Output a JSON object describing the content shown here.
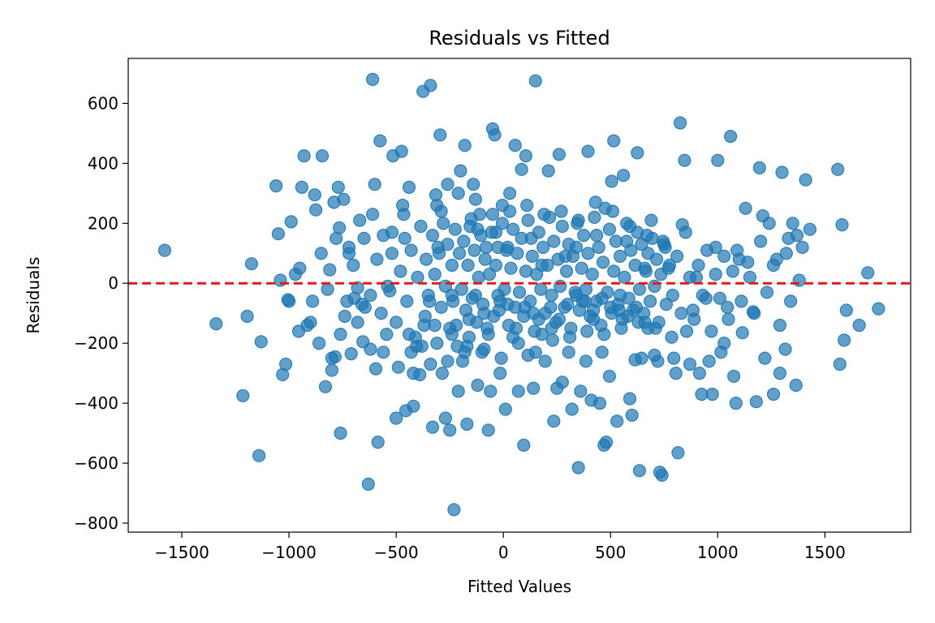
{
  "chart_data": {
    "type": "scatter",
    "title": "Residuals vs Fitted",
    "xlabel": "Fitted Values",
    "ylabel": "Residuals",
    "xlim": [
      -1750,
      1900
    ],
    "ylim": [
      -830,
      750
    ],
    "xticks": [
      -1500,
      -1000,
      -500,
      0,
      500,
      1000,
      1500
    ],
    "xtick_labels": [
      "−1500",
      "−1000",
      "−500",
      "0",
      "500",
      "1000",
      "1500"
    ],
    "yticks": [
      -800,
      -600,
      -400,
      -200,
      0,
      200,
      400,
      600
    ],
    "ytick_labels": [
      "−800",
      "−600",
      "−400",
      "−200",
      "0",
      "200",
      "400",
      "600"
    ],
    "grid": false,
    "point_color": "#1f77b4",
    "reference_line": {
      "y": 0,
      "color": "#e31a1c",
      "style": "dashed"
    },
    "points": [
      [
        -1580,
        110
      ],
      [
        -1340,
        -135
      ],
      [
        -1215,
        -375
      ],
      [
        -1195,
        -110
      ],
      [
        -1175,
        65
      ],
      [
        -1140,
        -575
      ],
      [
        -1130,
        -195
      ],
      [
        -1060,
        325
      ],
      [
        -1050,
        165
      ],
      [
        -1040,
        10
      ],
      [
        -1030,
        -305
      ],
      [
        -1015,
        -270
      ],
      [
        -1005,
        -55
      ],
      [
        -990,
        205
      ],
      [
        -970,
        30
      ],
      [
        -955,
        -160
      ],
      [
        -940,
        320
      ],
      [
        -930,
        425
      ],
      [
        -915,
        -140
      ],
      [
        -890,
        -60
      ],
      [
        -880,
        295
      ],
      [
        -875,
        245
      ],
      [
        -860,
        -200
      ],
      [
        -845,
        425
      ],
      [
        -830,
        -345
      ],
      [
        -810,
        45
      ],
      [
        -800,
        -290
      ],
      [
        -790,
        270
      ],
      [
        -785,
        -245
      ],
      [
        -770,
        320
      ],
      [
        -765,
        185
      ],
      [
        -760,
        -500
      ],
      [
        -745,
        280
      ],
      [
        -730,
        -60
      ],
      [
        -720,
        100
      ],
      [
        -710,
        -235
      ],
      [
        -695,
        -50
      ],
      [
        -680,
        -130
      ],
      [
        -670,
        210
      ],
      [
        -655,
        -195
      ],
      [
        -645,
        -80
      ],
      [
        -630,
        -670
      ],
      [
        -620,
        -220
      ],
      [
        -610,
        680
      ],
      [
        -600,
        330
      ],
      [
        -595,
        -285
      ],
      [
        -585,
        -530
      ],
      [
        -575,
        475
      ],
      [
        -560,
        160
      ],
      [
        -545,
        -170
      ],
      [
        -530,
        -25
      ],
      [
        -515,
        425
      ],
      [
        -500,
        -450
      ],
      [
        -490,
        -280
      ],
      [
        -475,
        440
      ],
      [
        -465,
        230
      ],
      [
        -455,
        -425
      ],
      [
        -440,
        320
      ],
      [
        -430,
        -230
      ],
      [
        -420,
        -410
      ],
      [
        -405,
        -210
      ],
      [
        -390,
        -305
      ],
      [
        -375,
        640
      ],
      [
        -365,
        -110
      ],
      [
        -350,
        -40
      ],
      [
        -340,
        660
      ],
      [
        -330,
        -480
      ],
      [
        -320,
        -140
      ],
      [
        -315,
        295
      ],
      [
        -305,
        120
      ],
      [
        -295,
        495
      ],
      [
        -285,
        -300
      ],
      [
        -270,
        -450
      ],
      [
        -260,
        330
      ],
      [
        -250,
        -490
      ],
      [
        -240,
        -40
      ],
      [
        -230,
        -755
      ],
      [
        -220,
        -140
      ],
      [
        -210,
        -360
      ],
      [
        -200,
        375
      ],
      [
        -190,
        -260
      ],
      [
        -180,
        460
      ],
      [
        -170,
        -470
      ],
      [
        -160,
        -120
      ],
      [
        -150,
        215
      ],
      [
        -140,
        330
      ],
      [
        -130,
        -40
      ],
      [
        -120,
        -340
      ],
      [
        -110,
        230
      ],
      [
        -100,
        -230
      ],
      [
        -90,
        -100
      ],
      [
        -80,
        120
      ],
      [
        -70,
        -490
      ],
      [
        -60,
        -360
      ],
      [
        -50,
        515
      ],
      [
        -40,
        495
      ],
      [
        -35,
        170
      ],
      [
        -25,
        -40
      ],
      [
        -15,
        -300
      ],
      [
        -5,
        260
      ],
      [
        10,
        -420
      ],
      [
        20,
        120
      ],
      [
        30,
        300
      ],
      [
        45,
        -180
      ],
      [
        55,
        460
      ],
      [
        70,
        -360
      ],
      [
        85,
        380
      ],
      [
        95,
        -540
      ],
      [
        105,
        425
      ],
      [
        115,
        -240
      ],
      [
        130,
        150
      ],
      [
        140,
        -350
      ],
      [
        150,
        675
      ],
      [
        165,
        -120
      ],
      [
        180,
        60
      ],
      [
        195,
        -260
      ],
      [
        210,
        375
      ],
      [
        225,
        -150
      ],
      [
        235,
        -460
      ],
      [
        250,
        -350
      ],
      [
        260,
        430
      ],
      [
        275,
        -330
      ],
      [
        290,
        90
      ],
      [
        305,
        -230
      ],
      [
        320,
        -420
      ],
      [
        340,
        120
      ],
      [
        350,
        -615
      ],
      [
        360,
        -360
      ],
      [
        370,
        -60
      ],
      [
        385,
        -260
      ],
      [
        395,
        440
      ],
      [
        410,
        -390
      ],
      [
        420,
        -120
      ],
      [
        435,
        160
      ],
      [
        450,
        -400
      ],
      [
        460,
        -230
      ],
      [
        470,
        -540
      ],
      [
        480,
        -530
      ],
      [
        495,
        -310
      ],
      [
        505,
        340
      ],
      [
        515,
        475
      ],
      [
        530,
        -460
      ],
      [
        545,
        -40
      ],
      [
        560,
        360
      ],
      [
        575,
        140
      ],
      [
        590,
        -385
      ],
      [
        600,
        -440
      ],
      [
        615,
        -255
      ],
      [
        625,
        435
      ],
      [
        635,
        -625
      ],
      [
        645,
        -250
      ],
      [
        660,
        50
      ],
      [
        675,
        -150
      ],
      [
        690,
        210
      ],
      [
        705,
        -240
      ],
      [
        720,
        -260
      ],
      [
        730,
        -630
      ],
      [
        740,
        -640
      ],
      [
        755,
        120
      ],
      [
        770,
        50
      ],
      [
        785,
        -180
      ],
      [
        795,
        -250
      ],
      [
        805,
        -300
      ],
      [
        815,
        -565
      ],
      [
        825,
        535
      ],
      [
        835,
        195
      ],
      [
        845,
        410
      ],
      [
        855,
        -160
      ],
      [
        870,
        -270
      ],
      [
        885,
        -90
      ],
      [
        900,
        20
      ],
      [
        915,
        -300
      ],
      [
        925,
        -370
      ],
      [
        945,
        -50
      ],
      [
        960,
        -260
      ],
      [
        975,
        -370
      ],
      [
        990,
        120
      ],
      [
        1000,
        410
      ],
      [
        1015,
        -230
      ],
      [
        1030,
        -200
      ],
      [
        1045,
        -80
      ],
      [
        1060,
        490
      ],
      [
        1075,
        -310
      ],
      [
        1085,
        -400
      ],
      [
        1100,
        80
      ],
      [
        1115,
        -165
      ],
      [
        1130,
        250
      ],
      [
        1150,
        20
      ],
      [
        1165,
        -95
      ],
      [
        1180,
        -395
      ],
      [
        1195,
        385
      ],
      [
        1210,
        225
      ],
      [
        1220,
        -250
      ],
      [
        1240,
        200
      ],
      [
        1260,
        -370
      ],
      [
        1275,
        80
      ],
      [
        1290,
        -300
      ],
      [
        1300,
        370
      ],
      [
        1315,
        -220
      ],
      [
        1330,
        150
      ],
      [
        1350,
        200
      ],
      [
        1365,
        -340
      ],
      [
        1380,
        10
      ],
      [
        1395,
        120
      ],
      [
        1410,
        345
      ],
      [
        1430,
        180
      ],
      [
        1560,
        380
      ],
      [
        1570,
        -270
      ],
      [
        1580,
        195
      ],
      [
        1590,
        -190
      ],
      [
        1600,
        -90
      ],
      [
        1660,
        -140
      ],
      [
        1700,
        35
      ],
      [
        1750,
        -85
      ],
      [
        -1000,
        -60
      ],
      [
        -950,
        50
      ],
      [
        -900,
        -130
      ],
      [
        -850,
        100
      ],
      [
        -820,
        -20
      ],
      [
        -780,
        150
      ],
      [
        -740,
        -110
      ],
      [
        -700,
        60
      ],
      [
        -680,
        -15
      ],
      [
        -650,
        150
      ],
      [
        -620,
        -40
      ],
      [
        -590,
        80
      ],
      [
        -570,
        -100
      ],
      [
        -540,
        -10
      ],
      [
        -520,
        170
      ],
      [
        -500,
        -130
      ],
      [
        -480,
        40
      ],
      [
        -460,
        150
      ],
      [
        -450,
        -60
      ],
      [
        -430,
        110
      ],
      [
        -410,
        -180
      ],
      [
        -400,
        20
      ],
      [
        -385,
        190
      ],
      [
        -370,
        -140
      ],
      [
        -360,
        80
      ],
      [
        -345,
        -60
      ],
      [
        -330,
        160
      ],
      [
        -320,
        30
      ],
      [
        -310,
        -200
      ],
      [
        -300,
        100
      ],
      [
        -290,
        -80
      ],
      [
        -280,
        200
      ],
      [
        -270,
        -10
      ],
      [
        -260,
        130
      ],
      [
        -250,
        -150
      ],
      [
        -240,
        60
      ],
      [
        -235,
        -60
      ],
      [
        -225,
        180
      ],
      [
        -215,
        -210
      ],
      [
        -205,
        100
      ],
      [
        -195,
        -20
      ],
      [
        -185,
        140
      ],
      [
        -175,
        -90
      ],
      [
        -165,
        60
      ],
      [
        -160,
        -180
      ],
      [
        -155,
        190
      ],
      [
        -145,
        -50
      ],
      [
        -135,
        110
      ],
      [
        -125,
        -130
      ],
      [
        -115,
        20
      ],
      [
        -105,
        160
      ],
      [
        -95,
        -70
      ],
      [
        -85,
        80
      ],
      [
        -75,
        -150
      ],
      [
        -65,
        30
      ],
      [
        -55,
        170
      ],
      [
        -45,
        -110
      ],
      [
        -35,
        60
      ],
      [
        -25,
        120
      ],
      [
        -15,
        -60
      ],
      [
        -5,
        200
      ],
      [
        5,
        -20
      ],
      [
        15,
        110
      ],
      [
        25,
        -140
      ],
      [
        35,
        50
      ],
      [
        45,
        180
      ],
      [
        55,
        -80
      ],
      [
        65,
        100
      ],
      [
        75,
        -30
      ],
      [
        85,
        150
      ],
      [
        95,
        -110
      ],
      [
        105,
        40
      ],
      [
        115,
        210
      ],
      [
        125,
        -60
      ],
      [
        135,
        90
      ],
      [
        145,
        -160
      ],
      [
        155,
        30
      ],
      [
        165,
        170
      ],
      [
        175,
        -20
      ],
      [
        185,
        120
      ],
      [
        195,
        -100
      ],
      [
        205,
        60
      ],
      [
        215,
        220
      ],
      [
        225,
        -40
      ],
      [
        235,
        140
      ],
      [
        245,
        -130
      ],
      [
        255,
        80
      ],
      [
        265,
        -10
      ],
      [
        275,
        190
      ],
      [
        285,
        -80
      ],
      [
        295,
        40
      ],
      [
        305,
        130
      ],
      [
        315,
        -150
      ],
      [
        325,
        90
      ],
      [
        335,
        -30
      ],
      [
        345,
        200
      ],
      [
        355,
        -90
      ],
      [
        365,
        50
      ],
      [
        375,
        160
      ],
      [
        385,
        -20
      ],
      [
        395,
        100
      ],
      [
        405,
        -110
      ],
      [
        415,
        30
      ],
      [
        425,
        220
      ],
      [
        435,
        -60
      ],
      [
        445,
        120
      ],
      [
        455,
        -140
      ],
      [
        465,
        70
      ],
      [
        475,
        250
      ],
      [
        485,
        -30
      ],
      [
        495,
        180
      ],
      [
        505,
        -100
      ],
      [
        515,
        40
      ],
      [
        525,
        140
      ],
      [
        535,
        -70
      ],
      [
        545,
        90
      ],
      [
        555,
        -120
      ],
      [
        565,
        20
      ],
      [
        575,
        200
      ],
      [
        585,
        -50
      ],
      [
        595,
        110
      ],
      [
        605,
        -90
      ],
      [
        615,
        60
      ],
      [
        625,
        170
      ],
      [
        635,
        -20
      ],
      [
        645,
        130
      ],
      [
        655,
        -100
      ],
      [
        665,
        40
      ],
      [
        675,
        100
      ],
      [
        685,
        -60
      ],
      [
        695,
        150
      ],
      [
        705,
        -10
      ],
      [
        715,
        80
      ],
      [
        725,
        -130
      ],
      [
        735,
        30
      ],
      [
        745,
        140
      ],
      [
        760,
        -70
      ],
      [
        775,
        60
      ],
      [
        790,
        -40
      ],
      [
        810,
        90
      ],
      [
        830,
        -100
      ],
      [
        850,
        170
      ],
      [
        870,
        20
      ],
      [
        890,
        -120
      ],
      [
        910,
        60
      ],
      [
        930,
        -40
      ],
      [
        950,
        110
      ],
      [
        970,
        -160
      ],
      [
        990,
        30
      ],
      [
        1010,
        -50
      ],
      [
        1030,
        90
      ],
      [
        1050,
        -120
      ],
      [
        1070,
        40
      ],
      [
        1090,
        110
      ],
      [
        1110,
        -60
      ],
      [
        1140,
        70
      ],
      [
        1170,
        -100
      ],
      [
        1200,
        140
      ],
      [
        1230,
        -30
      ],
      [
        1260,
        60
      ],
      [
        1290,
        -140
      ],
      [
        1320,
        100
      ],
      [
        1340,
        -60
      ],
      [
        1370,
        160
      ],
      [
        -470,
        260
      ],
      [
        -420,
        -300
      ],
      [
        -380,
        -210
      ],
      [
        -310,
        260
      ],
      [
        -260,
        -260
      ],
      [
        -210,
        300
      ],
      [
        -170,
        -210
      ],
      [
        -130,
        280
      ],
      [
        -90,
        -220
      ],
      [
        -50,
        230
      ],
      [
        -10,
        -250
      ],
      [
        30,
        240
      ],
      [
        70,
        -200
      ],
      [
        110,
        260
      ],
      [
        150,
        -230
      ],
      [
        190,
        230
      ],
      [
        230,
        -190
      ],
      [
        270,
        240
      ],
      [
        310,
        -180
      ],
      [
        350,
        210
      ],
      [
        390,
        -160
      ],
      [
        430,
        270
      ],
      [
        470,
        -170
      ],
      [
        510,
        240
      ],
      [
        550,
        -150
      ],
      [
        590,
        190
      ],
      [
        630,
        -130
      ],
      [
        670,
        160
      ],
      [
        710,
        -150
      ],
      [
        750,
        130
      ],
      [
        -800,
        -250
      ],
      [
        -760,
        -170
      ],
      [
        -720,
        120
      ],
      [
        -660,
        -70
      ],
      [
        -610,
        230
      ],
      [
        -560,
        -230
      ],
      [
        -520,
        100
      ],
      [
        -440,
        -170
      ],
      [
        -340,
        -270
      ],
      [
        -290,
        240
      ],
      [
        -240,
        -170
      ],
      [
        -180,
        -230
      ],
      [
        -120,
        180
      ],
      [
        -70,
        -170
      ],
      [
        -20,
        -90
      ],
      [
        20,
        -70
      ],
      [
        60,
        -150
      ],
      [
        100,
        -80
      ],
      [
        140,
        -100
      ],
      [
        180,
        -170
      ],
      [
        220,
        -80
      ],
      [
        260,
        -120
      ],
      [
        300,
        -70
      ],
      [
        340,
        -40
      ],
      [
        380,
        -60
      ],
      [
        420,
        -90
      ],
      [
        460,
        -50
      ],
      [
        500,
        -80
      ],
      [
        540,
        -90
      ],
      [
        580,
        -110
      ],
      [
        620,
        -80
      ],
      [
        660,
        -130
      ]
    ]
  }
}
